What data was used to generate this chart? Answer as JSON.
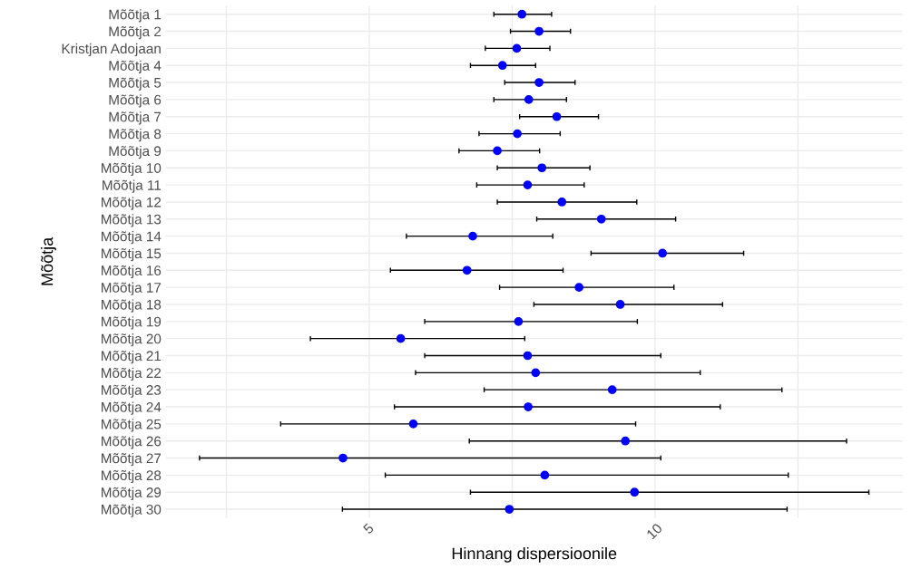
{
  "chart_data": {
    "type": "scatter",
    "orientation": "horizontal",
    "xlabel": "Hinnang dispersioonile",
    "ylabel": "Mõõtja",
    "categories": [
      "Mõõtja 1",
      "Mõõtja 2",
      "Kristjan Adojaan",
      "Mõõtja 4",
      "Mõõtja 5",
      "Mõõtja 6",
      "Mõõtja 7",
      "Mõõtja 8",
      "Mõõtja 9",
      "Mõõtja 10",
      "Mõõtja 11",
      "Mõõtja 12",
      "Mõõtja 13",
      "Mõõtja 14",
      "Mõõtja 15",
      "Mõõtja 16",
      "Mõõtja 17",
      "Mõõtja 18",
      "Mõõtja 19",
      "Mõõtja 20",
      "Mõõtja 21",
      "Mõõtja 22",
      "Mõõtja 23",
      "Mõõtja 24",
      "Mõõtja 25",
      "Mõõtja 26",
      "Mõõtja 27",
      "Mõõtja 28",
      "Mõõtja 29",
      "Mõõtja 30"
    ],
    "series": [
      {
        "color": "#0000ff",
        "values": [
          7.67,
          7.97,
          7.58,
          7.33,
          7.97,
          7.79,
          8.28,
          7.59,
          7.24,
          8.02,
          7.77,
          8.37,
          9.06,
          6.81,
          10.13,
          6.71,
          8.67,
          9.39,
          7.61,
          5.55,
          7.77,
          7.91,
          9.25,
          7.78,
          5.77,
          9.48,
          4.54,
          8.07,
          9.64,
          7.45
        ],
        "errors": [
          [
            7.18,
            8.19
          ],
          [
            7.47,
            8.52
          ],
          [
            7.03,
            8.16
          ],
          [
            6.77,
            7.91
          ],
          [
            7.37,
            8.6
          ],
          [
            7.18,
            8.45
          ],
          [
            7.63,
            9.01
          ],
          [
            6.92,
            8.34
          ],
          [
            6.57,
            7.98
          ],
          [
            7.24,
            8.86
          ],
          [
            6.88,
            8.76
          ],
          [
            7.24,
            9.68
          ],
          [
            7.93,
            10.36
          ],
          [
            5.65,
            8.21
          ],
          [
            8.88,
            11.55
          ],
          [
            5.37,
            8.39
          ],
          [
            7.28,
            10.33
          ],
          [
            7.88,
            11.18
          ],
          [
            5.97,
            9.69
          ],
          [
            3.97,
            7.72
          ],
          [
            5.97,
            10.1
          ],
          [
            5.81,
            10.79
          ],
          [
            7.01,
            12.22
          ],
          [
            5.44,
            11.14
          ],
          [
            3.45,
            9.66
          ],
          [
            6.75,
            13.35
          ],
          [
            2.03,
            10.1
          ],
          [
            5.28,
            12.33
          ],
          [
            6.77,
            13.74
          ],
          [
            4.53,
            12.31
          ]
        ]
      }
    ],
    "xlim": [
      1.44,
      14.33
    ],
    "xticks": [
      {
        "value": 2.5,
        "label": null
      },
      5,
      {
        "value": 7.5,
        "label": null
      },
      10,
      {
        "value": 12.5,
        "label": null
      }
    ],
    "grid": true,
    "marker": "circle",
    "legend": false
  }
}
